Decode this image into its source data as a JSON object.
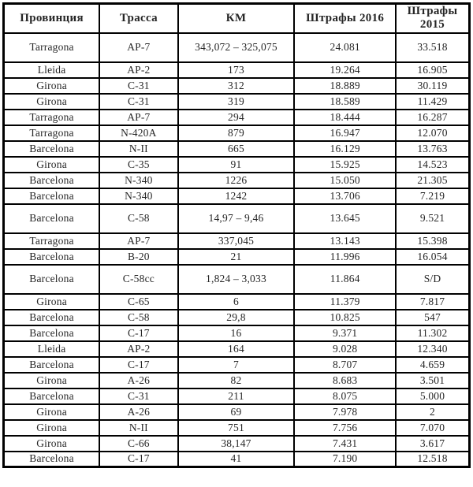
{
  "table": {
    "headers": {
      "province": "Провинция",
      "route": "Трасса",
      "km": "КМ",
      "fines_2016": "Штрафы 2016",
      "fines_2015": "Штрафы 2015"
    },
    "text_color": "#262626",
    "border_color": "#000000",
    "background_color": "#ffffff"
  },
  "chart_data": {
    "type": "table",
    "columns": [
      "Провинция",
      "Трасса",
      "КМ",
      "Штрафы 2016",
      "Штрафы 2015"
    ],
    "rows": [
      [
        "Tarragona",
        "AP-7",
        "343,072 – 325,075",
        "24.081",
        "33.518"
      ],
      [
        "Lleida",
        "AP-2",
        "173",
        "19.264",
        "16.905"
      ],
      [
        "Girona",
        "C-31",
        "312",
        "18.889",
        "30.119"
      ],
      [
        "Girona",
        "C-31",
        "319",
        "18.589",
        "11.429"
      ],
      [
        "Tarragona",
        "AP-7",
        "294",
        "18.444",
        "16.287"
      ],
      [
        "Tarragona",
        "N-420A",
        "879",
        "16.947",
        "12.070"
      ],
      [
        "Barcelona",
        "N-II",
        "665",
        "16.129",
        "13.763"
      ],
      [
        "Girona",
        "C-35",
        "91",
        "15.925",
        "14.523"
      ],
      [
        "Barcelona",
        "N-340",
        "1226",
        "15.050",
        "21.305"
      ],
      [
        "Barcelona",
        "N-340",
        "1242",
        "13.706",
        "7.219"
      ],
      [
        "Barcelona",
        "C-58",
        "14,97 – 9,46",
        "13.645",
        "9.521"
      ],
      [
        "Tarragona",
        "AP-7",
        "337,045",
        "13.143",
        "15.398"
      ],
      [
        "Barcelona",
        "B-20",
        "21",
        "11.996",
        "16.054"
      ],
      [
        "Barcelona",
        "C-58cc",
        "1,824 – 3,033",
        "11.864",
        "S/D"
      ],
      [
        "Girona",
        "C-65",
        "6",
        "11.379",
        "7.817"
      ],
      [
        "Barcelona",
        "C-58",
        "29,8",
        "10.825",
        "547"
      ],
      [
        "Barcelona",
        "C-17",
        "16",
        "9.371",
        "11.302"
      ],
      [
        "Lleida",
        "AP-2",
        "164",
        "9.028",
        "12.340"
      ],
      [
        "Barcelona",
        "C-17",
        "7",
        "8.707",
        "4.659"
      ],
      [
        "Girona",
        "A-26",
        "82",
        "8.683",
        "3.501"
      ],
      [
        "Barcelona",
        "C-31",
        "211",
        "8.075",
        "5.000"
      ],
      [
        "Girona",
        "A-26",
        "69",
        "7.978",
        "2"
      ],
      [
        "Girona",
        "N-II",
        "751",
        "7.756",
        "7.070"
      ],
      [
        "Girona",
        "C-66",
        "38,147",
        "7.431",
        "3.617"
      ],
      [
        "Barcelona",
        "C-17",
        "41",
        "7.190",
        "12.518"
      ]
    ]
  }
}
